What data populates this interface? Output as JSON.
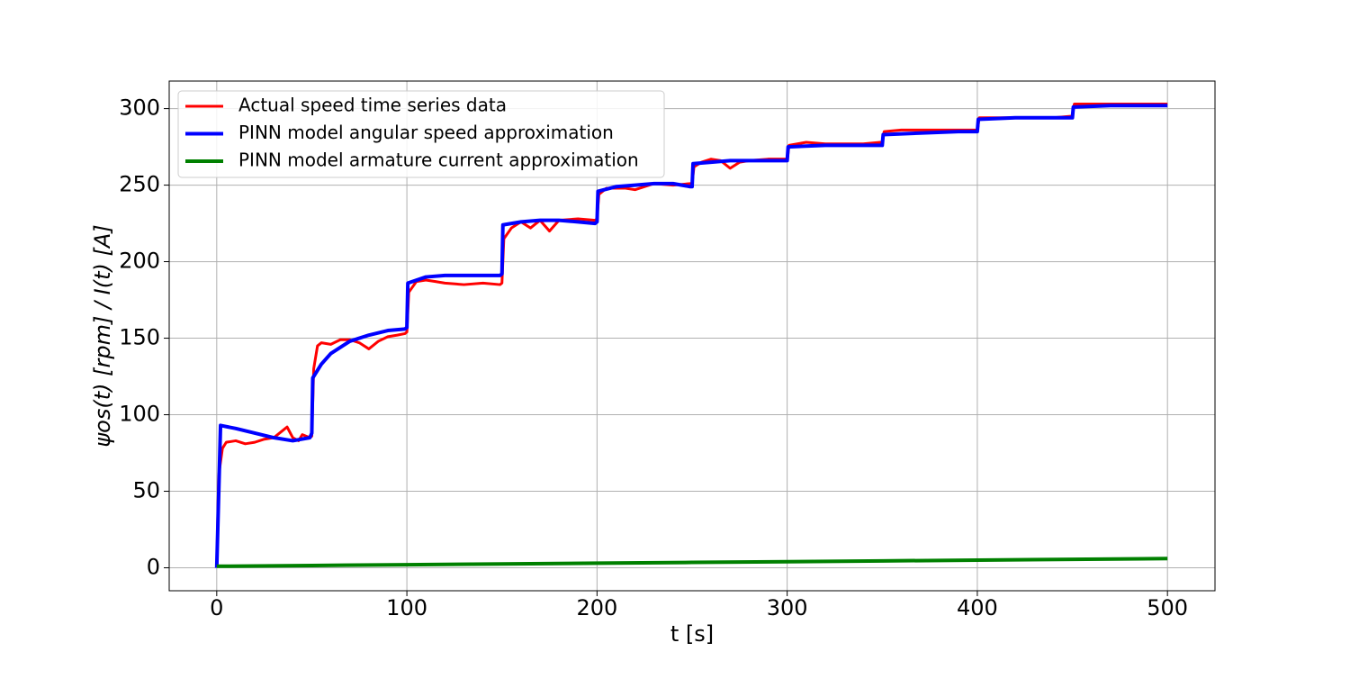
{
  "chart_data": {
    "type": "line",
    "x_label": "t [s]",
    "y_label": "ψos(t) [rpm] / I(t) [A]",
    "xlim": [
      -25,
      525
    ],
    "xticks": [
      0,
      100,
      200,
      300,
      400,
      500
    ],
    "ylim": [
      -15,
      318
    ],
    "yticks": [
      0,
      50,
      100,
      150,
      200,
      250,
      300
    ],
    "grid": true,
    "legend": "upper left",
    "series": [
      {
        "name": "Actual speed time series data",
        "color": "#ff0000",
        "width": 3,
        "x": [
          0,
          1,
          3,
          5,
          10,
          15,
          20,
          25,
          30,
          35,
          37,
          40,
          43,
          45,
          49,
          50,
          51,
          53,
          55,
          60,
          65,
          70,
          75,
          80,
          85,
          90,
          95,
          99,
          100,
          101,
          105,
          110,
          115,
          120,
          130,
          140,
          149,
          150,
          151,
          155,
          160,
          165,
          170,
          175,
          180,
          190,
          199,
          200,
          201,
          205,
          210,
          215,
          220,
          230,
          240,
          249,
          250,
          251,
          255,
          260,
          265,
          270,
          275,
          280,
          290,
          299,
          300,
          301,
          310,
          320,
          340,
          349,
          350,
          351,
          360,
          380,
          399,
          400,
          401,
          420,
          440,
          449,
          450,
          451,
          470,
          490,
          500
        ],
        "values": [
          0,
          60,
          78,
          82,
          83,
          81,
          82,
          84,
          85,
          90,
          92,
          85,
          83,
          87,
          85,
          86,
          130,
          145,
          147,
          146,
          149,
          149,
          147,
          143,
          148,
          151,
          152,
          153,
          154,
          180,
          187,
          188,
          187,
          186,
          185,
          186,
          185,
          186,
          215,
          222,
          226,
          222,
          227,
          220,
          227,
          228,
          227,
          228,
          244,
          248,
          248,
          248,
          247,
          251,
          250,
          251,
          251,
          262,
          265,
          267,
          266,
          261,
          265,
          266,
          267,
          267,
          266,
          276,
          278,
          277,
          277,
          278,
          278,
          285,
          286,
          286,
          286,
          285,
          294,
          294,
          294,
          295,
          295,
          303,
          303,
          303,
          303
        ]
      },
      {
        "name": "PINN model angular speed approximation",
        "color": "#0000ff",
        "width": 4,
        "x": [
          0,
          2,
          10,
          20,
          30,
          40,
          49,
          50,
          50.5,
          55,
          60,
          70,
          80,
          90,
          99,
          100,
          100.5,
          110,
          120,
          130,
          140,
          149,
          150,
          150.5,
          160,
          170,
          180,
          190,
          199,
          200,
          200.5,
          210,
          220,
          230,
          240,
          249,
          250,
          250.5,
          260,
          270,
          280,
          290,
          299,
          300,
          300.5,
          320,
          340,
          349,
          350,
          350.5,
          370,
          390,
          399,
          400,
          400.5,
          420,
          440,
          449,
          450,
          450.5,
          470,
          500
        ],
        "values": [
          0,
          93,
          91,
          88,
          85,
          83,
          85,
          88,
          124,
          133,
          140,
          148,
          152,
          155,
          156,
          157,
          186,
          190,
          191,
          191,
          191,
          191,
          192,
          224,
          226,
          227,
          227,
          226,
          225,
          226,
          246,
          249,
          250,
          251,
          251,
          249,
          249,
          264,
          265,
          266,
          266,
          266,
          266,
          266,
          275,
          276,
          276,
          276,
          276,
          283,
          284,
          285,
          285,
          285,
          293,
          294,
          294,
          294,
          294,
          301,
          302,
          302
        ]
      },
      {
        "name": "PINN model armature current approximation",
        "color": "#008000",
        "width": 4,
        "x": [
          0,
          50,
          100,
          150,
          200,
          250,
          300,
          350,
          400,
          450,
          500
        ],
        "values": [
          1,
          1.5,
          2,
          2.5,
          3,
          3.5,
          4,
          4.5,
          5,
          5.5,
          6
        ]
      }
    ]
  }
}
